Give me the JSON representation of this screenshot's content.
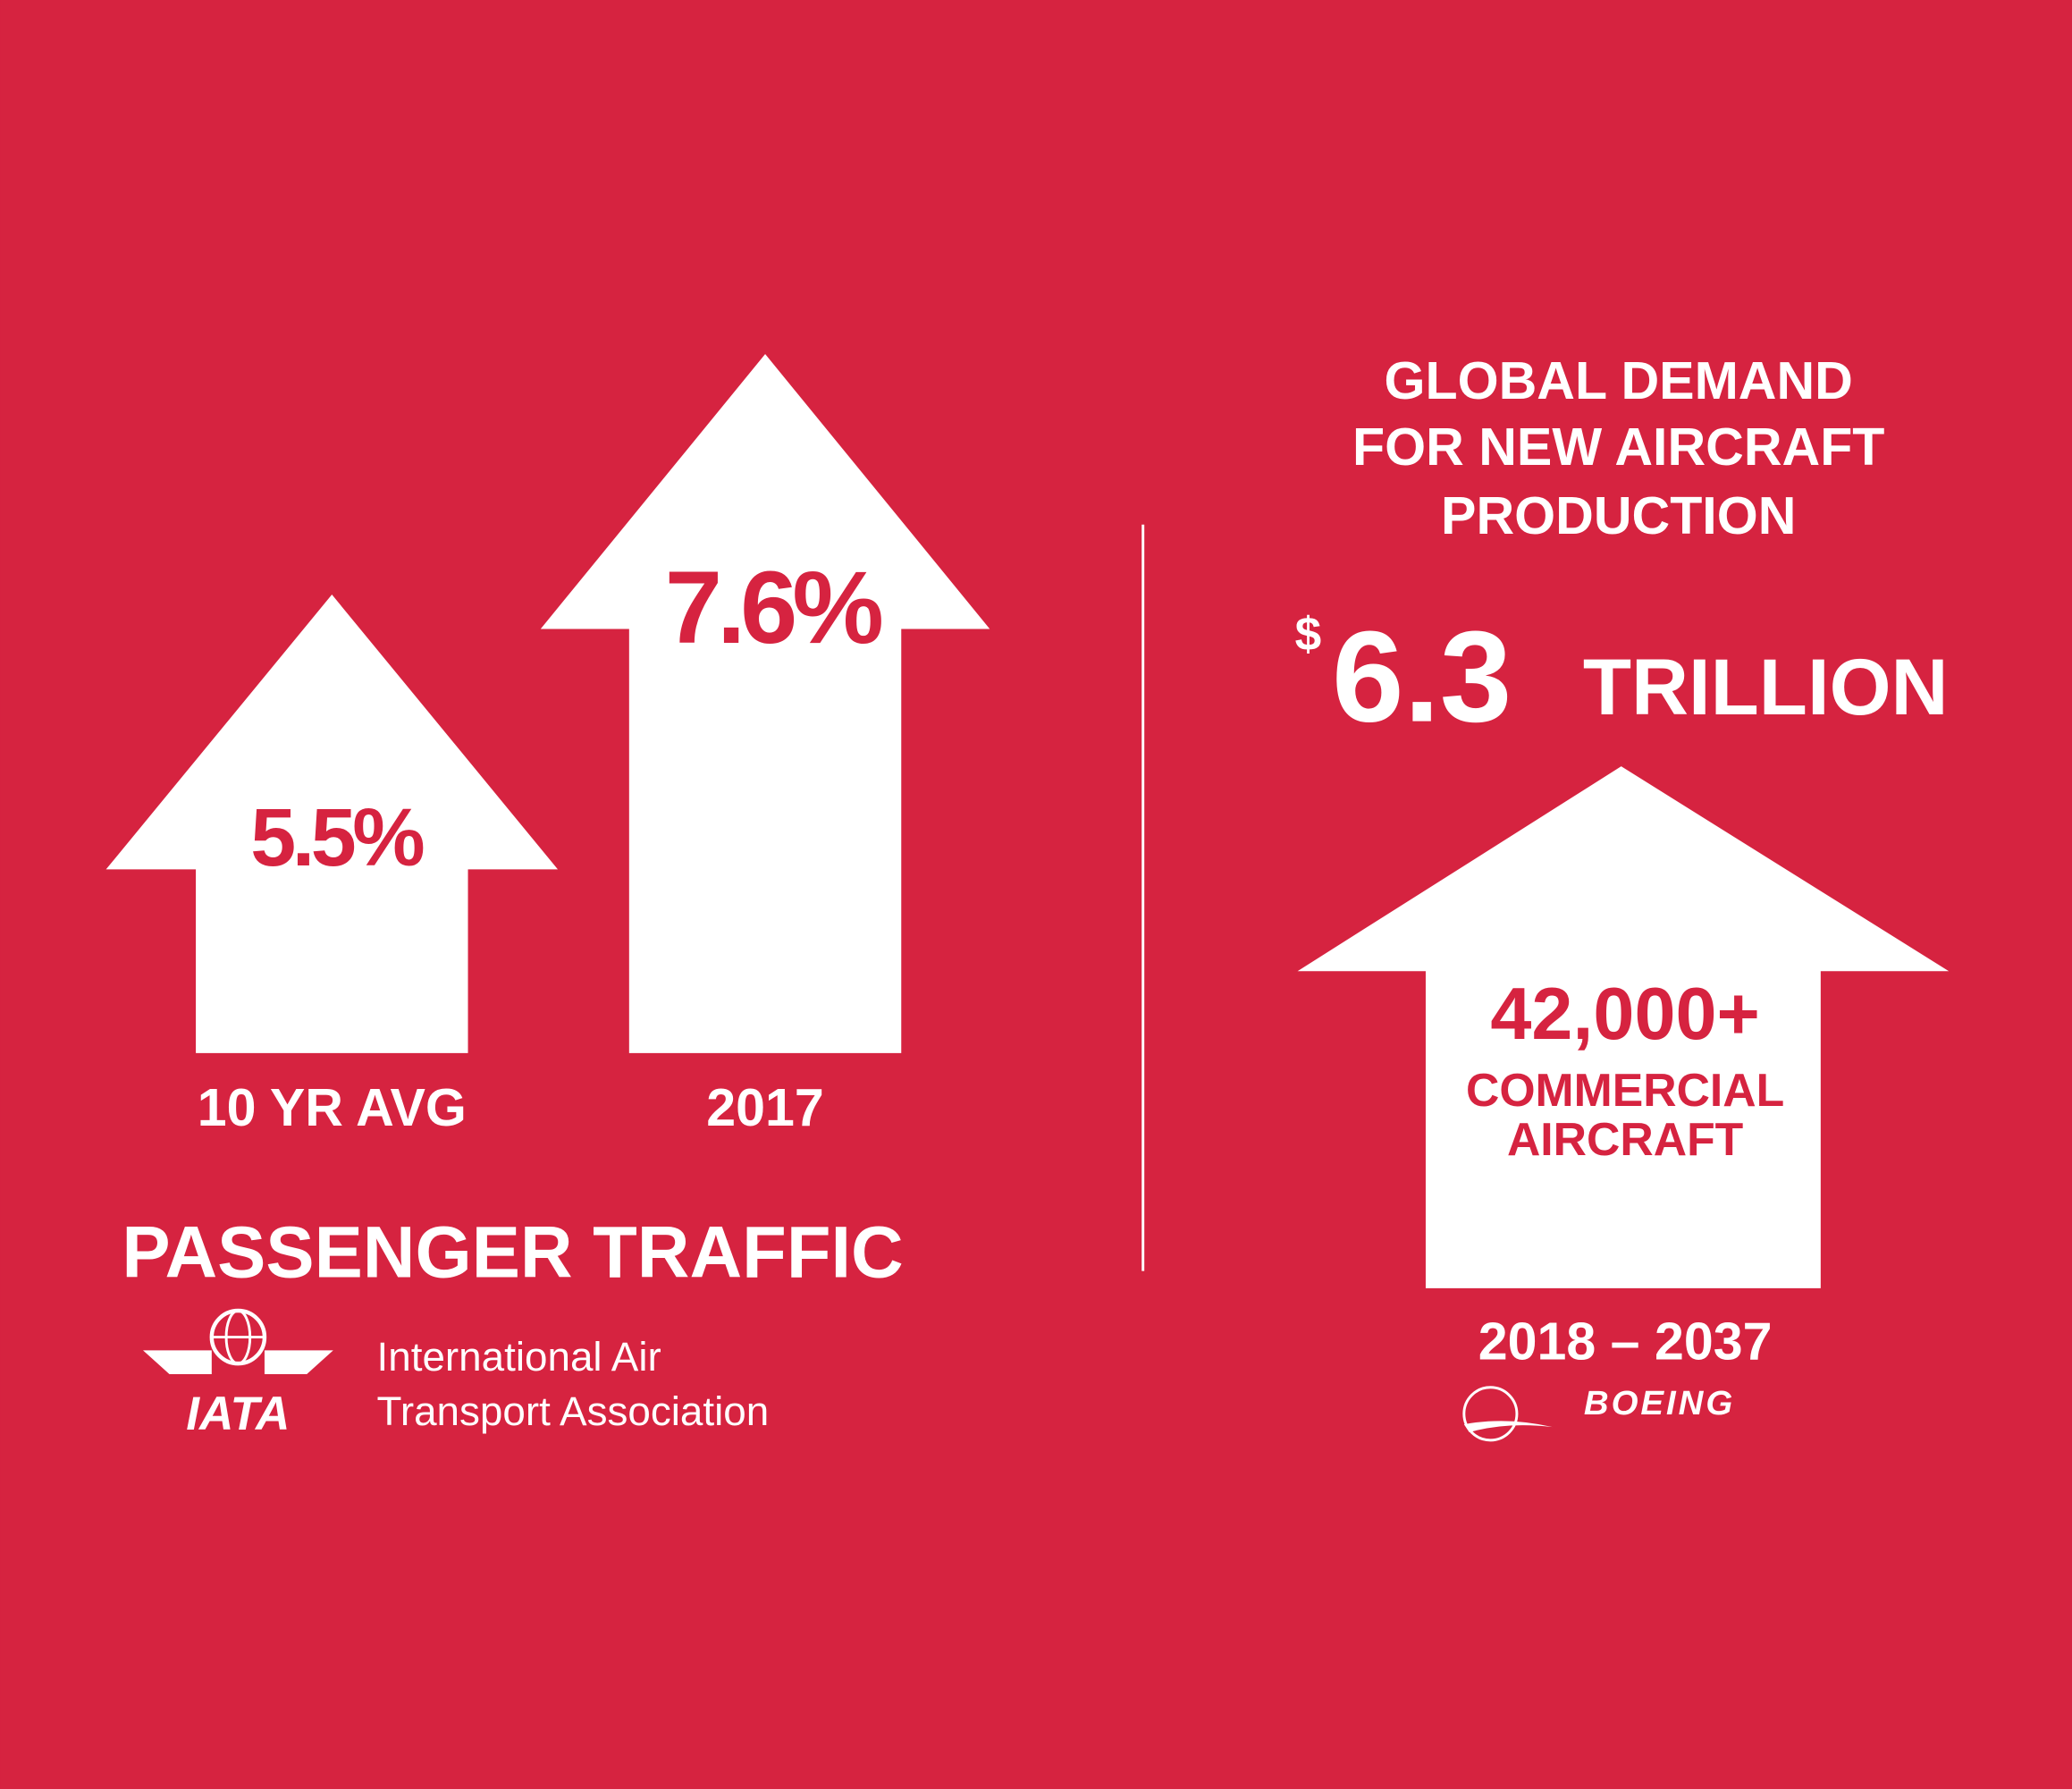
{
  "passenger_traffic": {
    "items": [
      {
        "value": "5.5%",
        "label": "10 YR AVG"
      },
      {
        "value": "7.6%",
        "label": "2017"
      }
    ],
    "title": "PASSENGER TRAFFIC",
    "source": {
      "logo": "IATA",
      "name_lines": [
        "International Air",
        "Transport Association"
      ]
    }
  },
  "aircraft_demand": {
    "title_lines": [
      "GLOBAL DEMAND",
      "FOR NEW AIRCRAFT",
      "PRODUCTION"
    ],
    "amount": {
      "currency": "$",
      "number": "6.3",
      "unit": "TRILLION"
    },
    "count": "42,000+",
    "count_label_lines": [
      "COMMERCIAL",
      "AIRCRAFT"
    ],
    "period": "2018 – 2037",
    "source": "BOEING"
  }
}
